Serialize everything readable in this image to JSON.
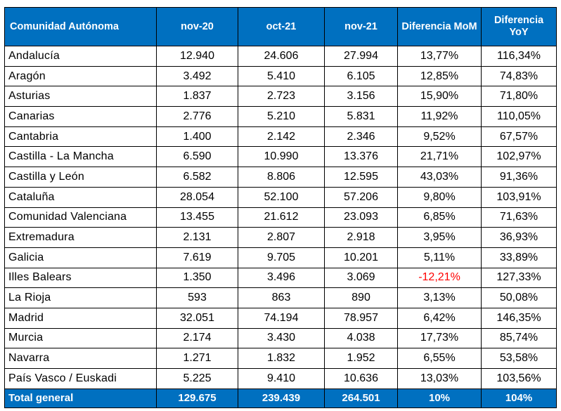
{
  "table": {
    "headers": [
      "Comunidad Autónoma",
      "nov-20",
      "oct-21",
      "nov-21",
      "Diferencia MoM",
      "Diferencia YoY"
    ],
    "rows": [
      [
        "Andalucía",
        "12.940",
        "24.606",
        "27.994",
        "13,77%",
        "116,34%"
      ],
      [
        "Aragón",
        "3.492",
        "5.410",
        "6.105",
        "12,85%",
        "74,83%"
      ],
      [
        "Asturias",
        "1.837",
        "2.723",
        "3.156",
        "15,90%",
        "71,80%"
      ],
      [
        "Canarias",
        "2.776",
        "5.210",
        "5.831",
        "11,92%",
        "110,05%"
      ],
      [
        "Cantabria",
        "1.400",
        "2.142",
        "2.346",
        "9,52%",
        "67,57%"
      ],
      [
        "Castilla - La Mancha",
        "6.590",
        "10.990",
        "13.376",
        "21,71%",
        "102,97%"
      ],
      [
        "Castilla y León",
        "6.582",
        "8.806",
        "12.595",
        "43,03%",
        "91,36%"
      ],
      [
        "Cataluña",
        "28.054",
        "52.100",
        "57.206",
        "9,80%",
        "103,91%"
      ],
      [
        "Comunidad Valenciana",
        "13.455",
        "21.612",
        "23.093",
        "6,85%",
        "71,63%"
      ],
      [
        "Extremadura",
        "2.131",
        "2.807",
        "2.918",
        "3,95%",
        "36,93%"
      ],
      [
        "Galicia",
        "7.619",
        "9.705",
        "10.201",
        "5,11%",
        "33,89%"
      ],
      [
        "Illes Balears",
        "1.350",
        "3.496",
        "3.069",
        "-12,21%",
        "127,33%"
      ],
      [
        "La Rioja",
        "593",
        "863",
        "890",
        "3,13%",
        "50,08%"
      ],
      [
        "Madrid",
        "32.051",
        "74.194",
        "78.957",
        "6,42%",
        "146,35%"
      ],
      [
        "Murcia",
        "2.174",
        "3.430",
        "4.038",
        "17,73%",
        "85,74%"
      ],
      [
        "Navarra",
        "1.271",
        "1.832",
        "1.952",
        "6,55%",
        "53,58%"
      ],
      [
        "País Vasco / Euskadi",
        "5.225",
        "9.410",
        "10.636",
        "13,03%",
        "103,56%"
      ]
    ],
    "total": [
      "Total general",
      "129.675",
      "239.439",
      "264.501",
      "10%",
      "104%"
    ]
  },
  "colors": {
    "header_bg": "#0070c0",
    "header_text": "#ffffff",
    "negative_value": "#ff0000",
    "border": "#000000"
  }
}
